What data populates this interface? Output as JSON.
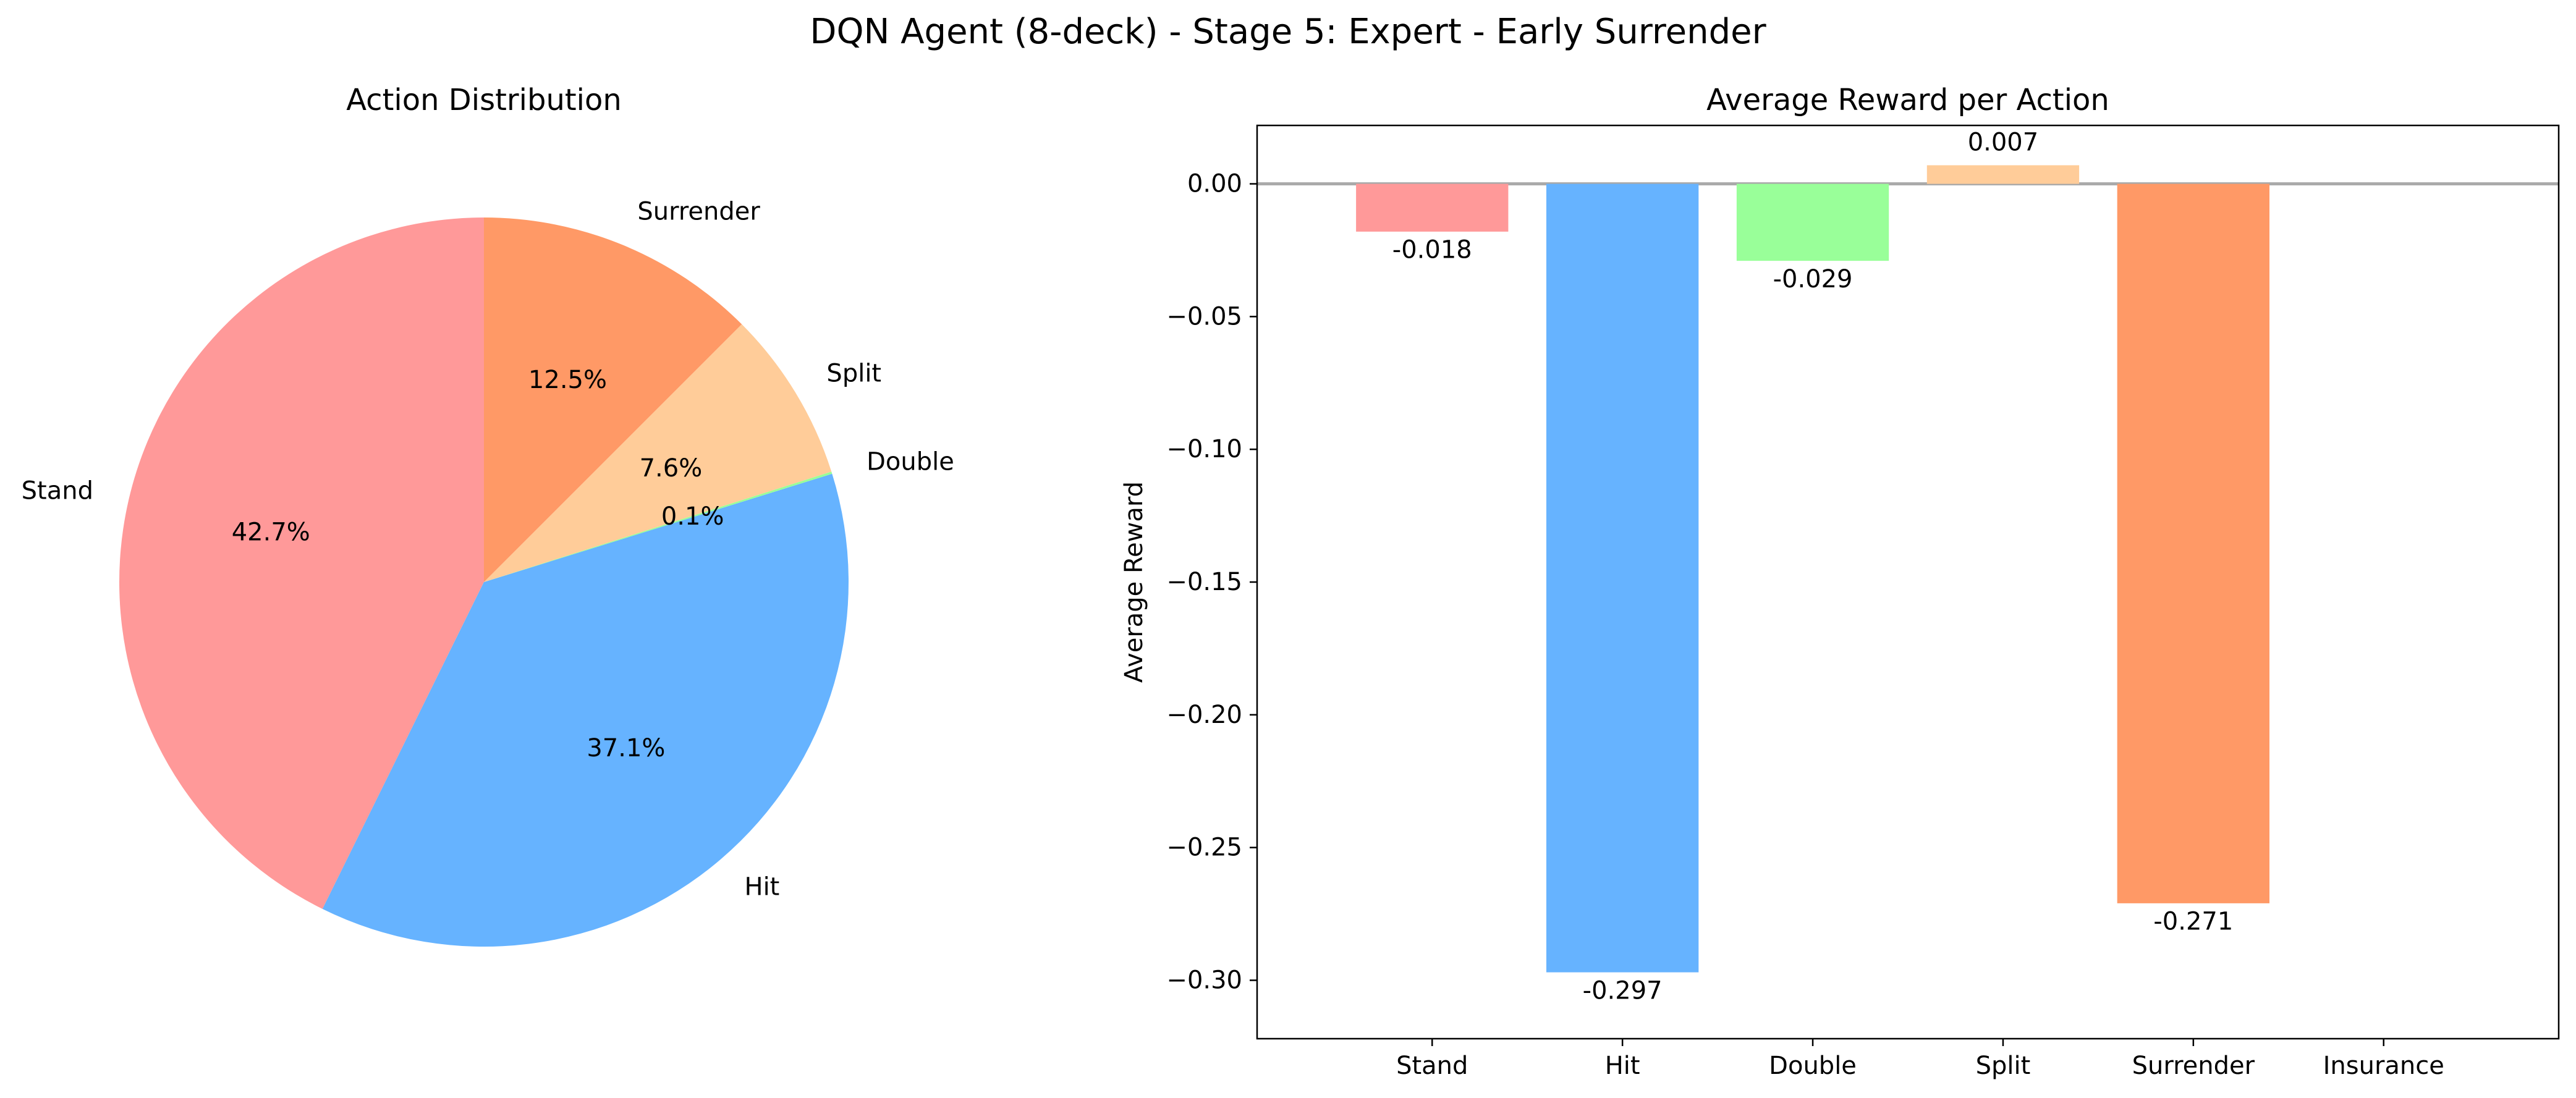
{
  "figure": {
    "title": "DQN Agent (8-deck) - Stage 5: Expert - Early Surrender"
  },
  "chart_data": [
    {
      "type": "pie",
      "title": "Action Distribution",
      "start_angle_deg": 90,
      "direction": "counterclockwise",
      "slices": [
        {
          "label": "Stand",
          "value": 42.7,
          "pct_label": "42.7%",
          "color": "#ff9999"
        },
        {
          "label": "Hit",
          "value": 37.1,
          "pct_label": "37.1%",
          "color": "#66b3ff"
        },
        {
          "label": "Double",
          "value": 0.1,
          "pct_label": "0.1%",
          "color": "#99ff99"
        },
        {
          "label": "Split",
          "value": 7.6,
          "pct_label": "7.6%",
          "color": "#ffcc99"
        },
        {
          "label": "Surrender",
          "value": 12.5,
          "pct_label": "12.5%",
          "color": "#ff9966"
        }
      ]
    },
    {
      "type": "bar",
      "title": "Average Reward per Action",
      "xlabel": "",
      "ylabel": "Average Reward",
      "ylim": [
        -0.322,
        0.022
      ],
      "yticks": [
        0.0,
        -0.05,
        -0.1,
        -0.15,
        -0.2,
        -0.25,
        -0.3
      ],
      "ytick_labels": [
        "0.00",
        "−0.05",
        "−0.10",
        "−0.15",
        "−0.20",
        "−0.25",
        "−0.30"
      ],
      "grid": false,
      "zero_line": true,
      "categories": [
        "Stand",
        "Hit",
        "Double",
        "Split",
        "Surrender",
        "Insurance"
      ],
      "values": [
        -0.018,
        -0.297,
        -0.029,
        0.007,
        -0.271,
        null
      ],
      "value_labels": [
        "-0.018",
        "-0.297",
        "-0.029",
        "0.007",
        "-0.271",
        ""
      ],
      "colors": [
        "#ff9999",
        "#66b3ff",
        "#99ff99",
        "#ffcc99",
        "#ff9966",
        "#c2c2f0"
      ]
    }
  ]
}
